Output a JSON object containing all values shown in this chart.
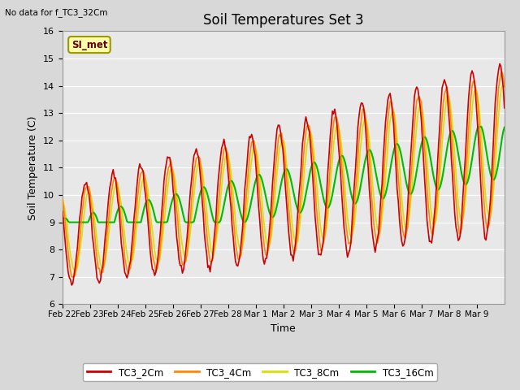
{
  "title": "Soil Temperatures Set 3",
  "xlabel": "Time",
  "ylabel": "Soil Temperature (C)",
  "top_left_text": "No data for f_TC3_32Cm",
  "annotation_text": "SI_met",
  "ylim": [
    6.0,
    16.0
  ],
  "yticks": [
    6.0,
    7.0,
    8.0,
    9.0,
    10.0,
    11.0,
    12.0,
    13.0,
    14.0,
    15.0,
    16.0
  ],
  "xtick_labels": [
    "Feb 22",
    "Feb 23",
    "Feb 24",
    "Feb 25",
    "Feb 26",
    "Feb 27",
    "Feb 28",
    "Mar 1",
    "Mar 2",
    "Mar 3",
    "Mar 4",
    "Mar 5",
    "Mar 6",
    "Mar 7",
    "Mar 8",
    "Mar 9"
  ],
  "bg_color": "#e8e8e8",
  "fig_bg_color": "#d8d8d8",
  "line_colors": {
    "TC3_2Cm": "#cc0000",
    "TC3_4Cm": "#ff8800",
    "TC3_8Cm": "#dddd00",
    "TC3_16Cm": "#00bb00"
  },
  "title_fontsize": 12,
  "axis_label_fontsize": 9,
  "tick_fontsize": 8
}
